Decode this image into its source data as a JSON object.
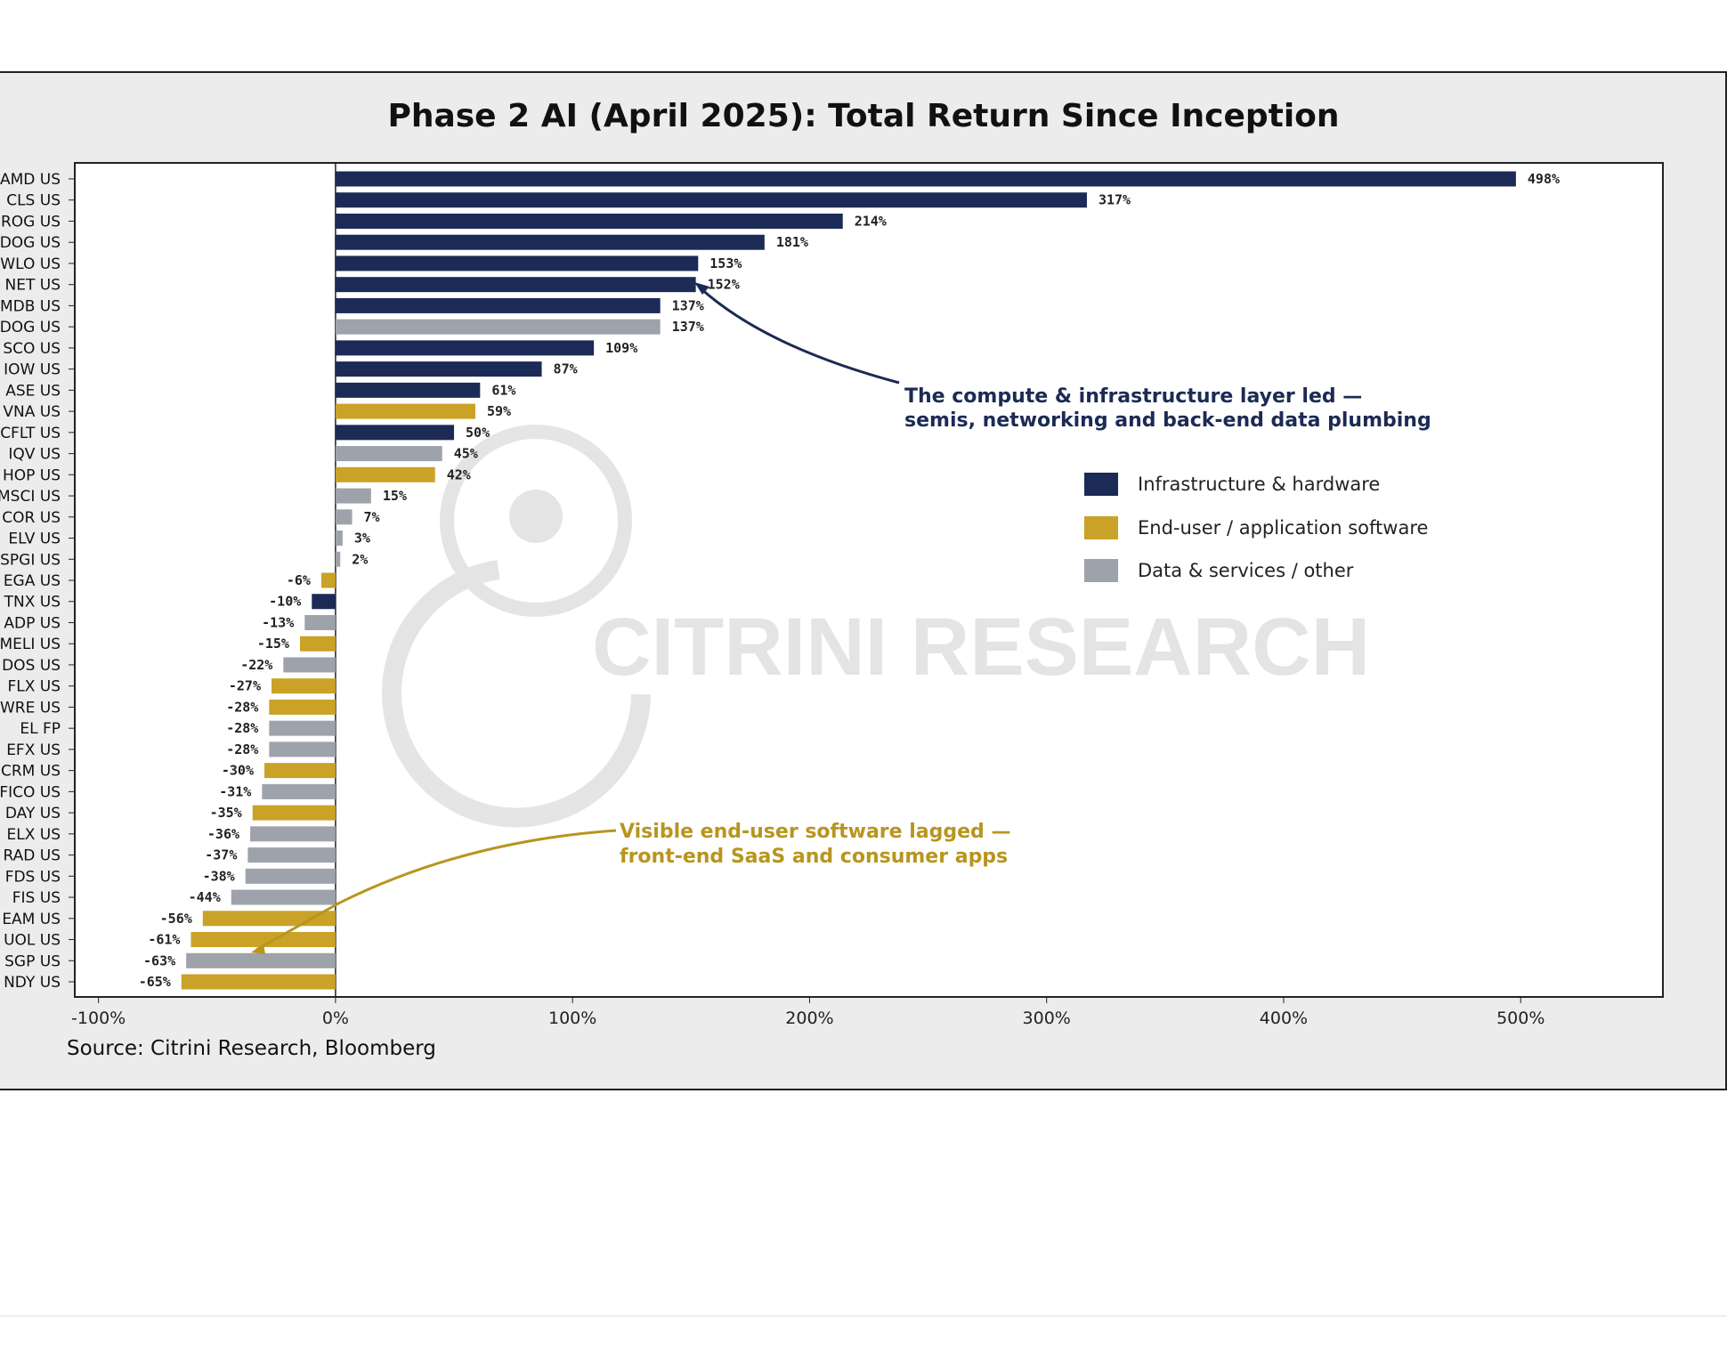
{
  "chart_data": {
    "type": "bar",
    "orientation": "horizontal",
    "title": "Phase 2 AI (April 2025): Total Return Since Inception",
    "source": "Source: Citrini Research, Bloomberg",
    "xlim": [
      -110,
      560
    ],
    "x_ticks": [
      "-100%",
      "0%",
      "100%",
      "200%",
      "300%",
      "400%",
      "500%"
    ],
    "x_tick_values": [
      -100,
      0,
      100,
      200,
      300,
      400,
      500
    ],
    "categories": [
      "AMD US",
      "CLS US",
      "ROG US",
      "DOG US",
      "WLO US",
      "NET US",
      "MDB US",
      "DOG US",
      "SCO US",
      "IOW US",
      "ASE US",
      "VNA US",
      "CFLT US",
      "IQV US",
      "HOP US",
      "MSCI US",
      "COR US",
      "ELV US",
      "SPGI US",
      "EGA US",
      "TNX US",
      "ADP US",
      "MELI US",
      "DOS US",
      "FLX US",
      "WRE US",
      "EL FP",
      "EFX US",
      "CRM US",
      "FICO US",
      "DAY US",
      "ELX US",
      "RAD US",
      "FDS US",
      "FIS US",
      "EAM US",
      "UOL US",
      "SGP US",
      "NDY US"
    ],
    "values": [
      498,
      317,
      214,
      181,
      153,
      152,
      137,
      137,
      109,
      87,
      61,
      59,
      50,
      45,
      42,
      15,
      7,
      3,
      2,
      -6,
      -10,
      -13,
      -15,
      -22,
      -27,
      -28,
      -28,
      -28,
      -30,
      -31,
      -35,
      -36,
      -37,
      -38,
      -44,
      -56,
      -61,
      -63,
      -65
    ],
    "value_labels": [
      "498%",
      "317%",
      "214%",
      "181%",
      "153%",
      "152%",
      "137%",
      "137%",
      "109%",
      "87%",
      "61%",
      "59%",
      "50%",
      "45%",
      "42%",
      "15%",
      "7%",
      "3%",
      "2%",
      "-6%",
      "-10%",
      "-13%",
      "-15%",
      "-22%",
      "-27%",
      "-28%",
      "-28%",
      "-28%",
      "-30%",
      "-31%",
      "-35%",
      "-36%",
      "-37%",
      "-38%",
      "-44%",
      "-56%",
      "-61%",
      "-63%",
      "-65%"
    ],
    "groups": [
      "infra",
      "infra",
      "infra",
      "infra",
      "infra",
      "infra",
      "infra",
      "data",
      "infra",
      "infra",
      "infra",
      "app",
      "infra",
      "data",
      "app",
      "data",
      "data",
      "data",
      "data",
      "app",
      "infra",
      "data",
      "app",
      "data",
      "app",
      "app",
      "data",
      "data",
      "app",
      "data",
      "app",
      "data",
      "data",
      "data",
      "data",
      "app",
      "app",
      "data",
      "app"
    ],
    "legend": {
      "placement": "right, mid-chart",
      "items": [
        {
          "key": "infra",
          "label": "Infrastructure & hardware",
          "color": "#1c2b55"
        },
        {
          "key": "app",
          "label": "End-user / application software",
          "color": "#c9a227"
        },
        {
          "key": "data",
          "label": "Data & services / other",
          "color": "#9ea3ab"
        }
      ]
    },
    "annotations": [
      {
        "lines": [
          "The compute & infrastructure layer led —",
          "semis, networking and back-end data plumbing"
        ],
        "color": "#1c2b55",
        "points_to": "NET US"
      },
      {
        "lines": [
          "Visible end-user software lagged —",
          "front-end SaaS and consumer apps"
        ],
        "color": "#b8951e",
        "points_to": "UOL US"
      }
    ],
    "watermark": "CITRINI RESEARCH",
    "grid": false
  }
}
